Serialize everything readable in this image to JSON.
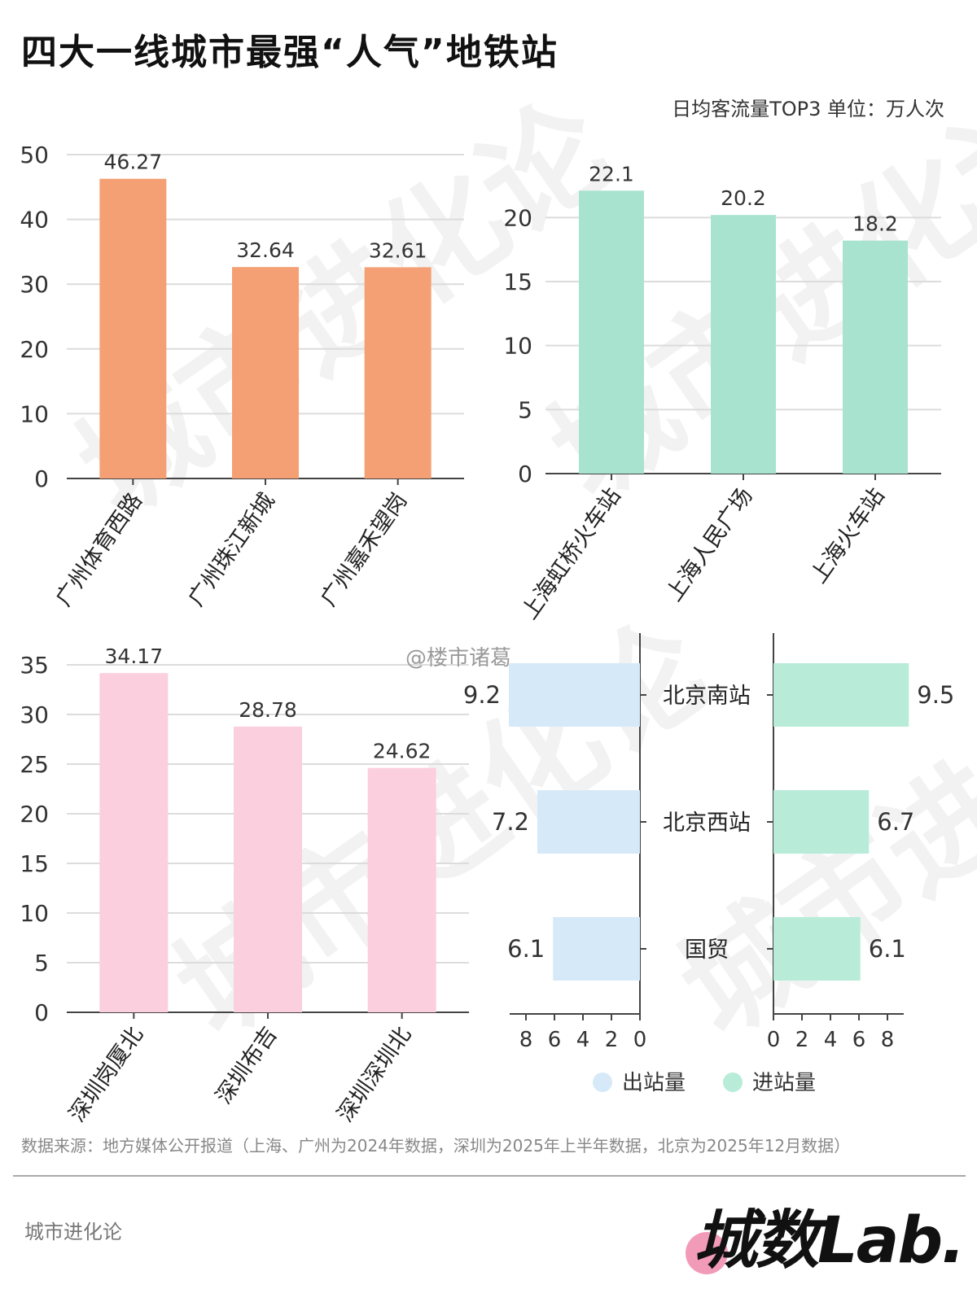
{
  "title": "四大一线城市最强“人气”地铁站",
  "subtitle": "日均客流量TOP3 单位：万人次",
  "source_note": "数据来源：地方媒体公开报道（上海、广州为2024年数据，深圳为2025年上半年数据，北京为2025年12月数据）",
  "footer_brand": "城市进化论",
  "logo_text": "城数Lab.",
  "weibo_mark": "@楼市诸葛",
  "watermark_text": "城市进化论",
  "colors": {
    "guangzhou": "#f4a074",
    "shanghai": "#a8e3cf",
    "shenzhen": "#fbcfdd",
    "beijing_out": "#d6e9f8",
    "beijing_in": "#b8ecd9"
  },
  "chart_data": [
    {
      "id": "guangzhou",
      "type": "bar",
      "categories": [
        "广州体育西路",
        "广州珠江新城",
        "广州嘉禾望岗"
      ],
      "values": [
        46.27,
        32.64,
        32.61
      ],
      "value_labels": [
        "46.27",
        "32.64",
        "32.61"
      ],
      "ylim": [
        0,
        50
      ],
      "yticks": [
        0,
        10,
        20,
        30,
        40,
        50
      ],
      "grid": true
    },
    {
      "id": "shanghai",
      "type": "bar",
      "categories": [
        "上海虹桥火车站",
        "上海人民广场",
        "上海火车站"
      ],
      "values": [
        22.1,
        20.2,
        18.2
      ],
      "value_labels": [
        "22.1",
        "20.2",
        "18.2"
      ],
      "ylim": [
        0,
        22.5
      ],
      "yticks": [
        0,
        5,
        10,
        15,
        20
      ],
      "grid": true
    },
    {
      "id": "shenzhen",
      "type": "bar",
      "categories": [
        "深圳岗厦北",
        "深圳布吉",
        "深圳深圳北"
      ],
      "values": [
        34.17,
        28.78,
        24.62
      ],
      "value_labels": [
        "34.17",
        "28.78",
        "24.62"
      ],
      "ylim": [
        0,
        35
      ],
      "yticks": [
        0,
        5,
        10,
        15,
        20,
        25,
        30,
        35
      ],
      "grid": true
    },
    {
      "id": "beijing",
      "type": "bar",
      "orientation": "horizontal-butterfly",
      "categories": [
        "北京南站",
        "北京西站",
        "国贸"
      ],
      "series": [
        {
          "name": "出站量",
          "values": [
            9.2,
            7.2,
            6.1
          ],
          "value_labels": [
            "9.2",
            "7.2",
            "6.1"
          ]
        },
        {
          "name": "进站量",
          "values": [
            9.5,
            6.7,
            6.1
          ],
          "value_labels": [
            "9.5",
            "6.7",
            "6.1"
          ]
        }
      ],
      "left_ticks": [
        "8",
        "6",
        "4",
        "2",
        "0"
      ],
      "right_ticks": [
        "0",
        "2",
        "4",
        "6",
        "8"
      ],
      "xlim": [
        0,
        9.5
      ],
      "legend": [
        "出站量",
        "进站量"
      ],
      "legend_position": "bottom"
    }
  ]
}
